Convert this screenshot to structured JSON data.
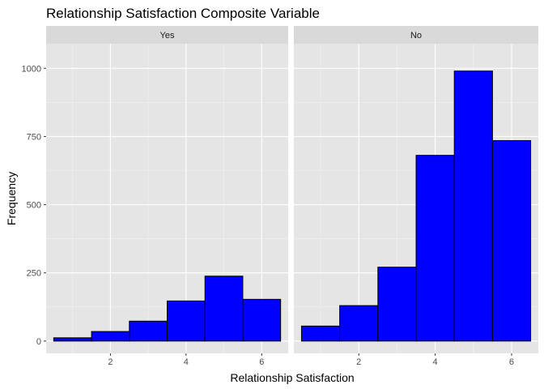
{
  "chart_data": {
    "type": "bar",
    "title": "Relationship Satisfaction Composite Variable",
    "xlabel": "Relationship Satisfaction",
    "ylabel": "Frequency",
    "bin_width": 1,
    "xlim": [
      0.3,
      6.7
    ],
    "ylim": [
      -45,
      1090
    ],
    "x_ticks": [
      2,
      4,
      6
    ],
    "y_ticks": [
      0,
      250,
      500,
      750,
      1000
    ],
    "grid": true,
    "bar_fill": "#0000ff",
    "bar_outline": "#000000",
    "panel_background": "#e5e5e5",
    "strip_background": "#d9d9d9",
    "facets": [
      {
        "label": "Yes",
        "bin_centers": [
          1,
          2,
          3,
          4,
          5,
          6
        ],
        "values": [
          12,
          35,
          73,
          147,
          238,
          153
        ]
      },
      {
        "label": "No",
        "bin_centers": [
          1,
          2,
          3,
          4,
          5,
          6
        ],
        "values": [
          55,
          130,
          271,
          681,
          990,
          735
        ]
      }
    ]
  }
}
